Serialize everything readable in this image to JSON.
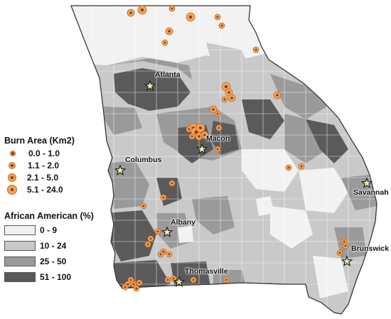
{
  "legend_burn": {
    "title": "Burn Area (Km2)",
    "items": [
      {
        "label": "0.0 - 1.0"
      },
      {
        "label": "1.1 - 2.0"
      },
      {
        "label": "2.1 - 5.0"
      },
      {
        "label": "5.1 - 24.0"
      }
    ]
  },
  "legend_aa": {
    "title": "African American (%)",
    "items": [
      {
        "label": "0 - 9",
        "color": "#f2f2f2"
      },
      {
        "label": "10 - 24",
        "color": "#c9c9c9"
      },
      {
        "label": "25 - 50",
        "color": "#9a9a9a"
      },
      {
        "label": "51 - 100",
        "color": "#5a5a5a"
      }
    ]
  },
  "cities": [
    {
      "name": "Atlanta"
    },
    {
      "name": "Macon"
    },
    {
      "name": "Columbus"
    },
    {
      "name": "Savannah"
    },
    {
      "name": "Albany"
    },
    {
      "name": "Brunswick"
    },
    {
      "name": "Thomasville"
    }
  ],
  "colors": {
    "burn_fill": "#f0a35c",
    "burn_stroke": "#c86a1e",
    "star_fill": "#f2e7a8"
  }
}
